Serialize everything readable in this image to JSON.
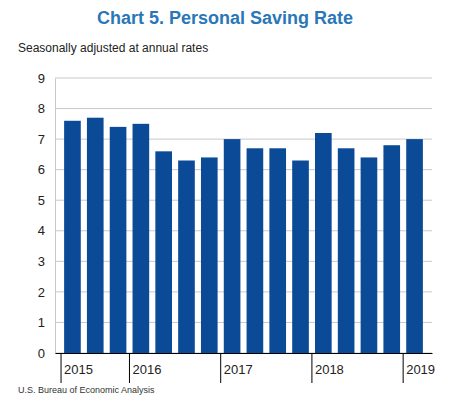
{
  "chart_data": {
    "type": "bar",
    "title": "Chart 5. Personal Saving Rate",
    "subtitle": "Seasonally adjusted at annual rates",
    "source": "U.S. Bureau of Economic Analysis",
    "categories": [
      "2015",
      null,
      null,
      "2016",
      null,
      null,
      null,
      "2017",
      null,
      null,
      null,
      "2018",
      null,
      null,
      null,
      "2019"
    ],
    "values": [
      7.6,
      7.7,
      7.4,
      7.5,
      6.6,
      6.3,
      6.4,
      7.0,
      6.7,
      6.7,
      6.3,
      7.2,
      6.7,
      6.4,
      6.8,
      7.0
    ],
    "color": "#0b4a97",
    "ylim": [
      0,
      9
    ],
    "yticks": [
      0,
      1,
      2,
      3,
      4,
      5,
      6,
      7,
      8,
      9
    ],
    "grid": true
  }
}
